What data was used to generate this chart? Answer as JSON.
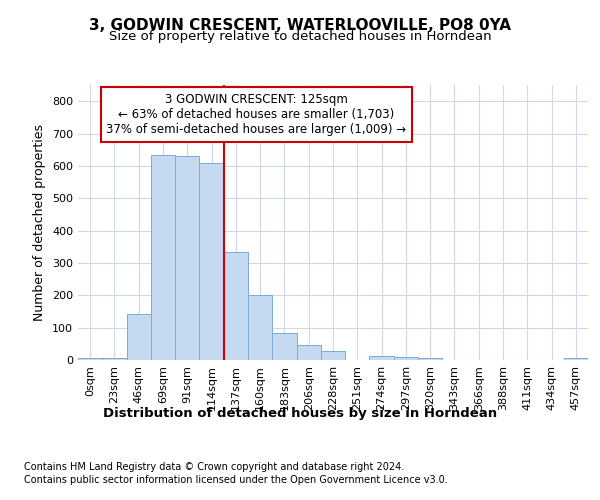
{
  "title": "3, GODWIN CRESCENT, WATERLOOVILLE, PO8 0YA",
  "subtitle": "Size of property relative to detached houses in Horndean",
  "xlabel_bottom": "Distribution of detached houses by size in Horndean",
  "ylabel": "Number of detached properties",
  "bar_color": "#c5d9f0",
  "bar_edge_color": "#7aabdb",
  "categories": [
    "0sqm",
    "23sqm",
    "46sqm",
    "69sqm",
    "91sqm",
    "114sqm",
    "137sqm",
    "160sqm",
    "183sqm",
    "206sqm",
    "228sqm",
    "251sqm",
    "274sqm",
    "297sqm",
    "320sqm",
    "343sqm",
    "366sqm",
    "388sqm",
    "411sqm",
    "434sqm",
    "457sqm"
  ],
  "values": [
    5,
    5,
    142,
    635,
    630,
    610,
    333,
    200,
    83,
    45,
    28,
    0,
    12,
    10,
    5,
    0,
    0,
    0,
    0,
    0,
    5
  ],
  "ylim": [
    0,
    850
  ],
  "yticks": [
    0,
    100,
    200,
    300,
    400,
    500,
    600,
    700,
    800
  ],
  "property_line_x": 5.5,
  "property_line_color": "#cc0000",
  "annotation_line1": "3 GODWIN CRESCENT: 125sqm",
  "annotation_line2": "← 63% of detached houses are smaller (1,703)",
  "annotation_line3": "37% of semi-detached houses are larger (1,009) →",
  "annotation_box_color": "#ffffff",
  "annotation_box_edge_color": "#cc0000",
  "footnote1": "Contains HM Land Registry data © Crown copyright and database right 2024.",
  "footnote2": "Contains public sector information licensed under the Open Government Licence v3.0.",
  "background_color": "#ffffff",
  "grid_color": "#d0d8e8",
  "title_fontsize": 11,
  "subtitle_fontsize": 9.5,
  "ylabel_fontsize": 9,
  "tick_fontsize": 8,
  "xlabel_bottom_fontsize": 9.5,
  "footnote_fontsize": 7,
  "annotation_fontsize": 8.5
}
